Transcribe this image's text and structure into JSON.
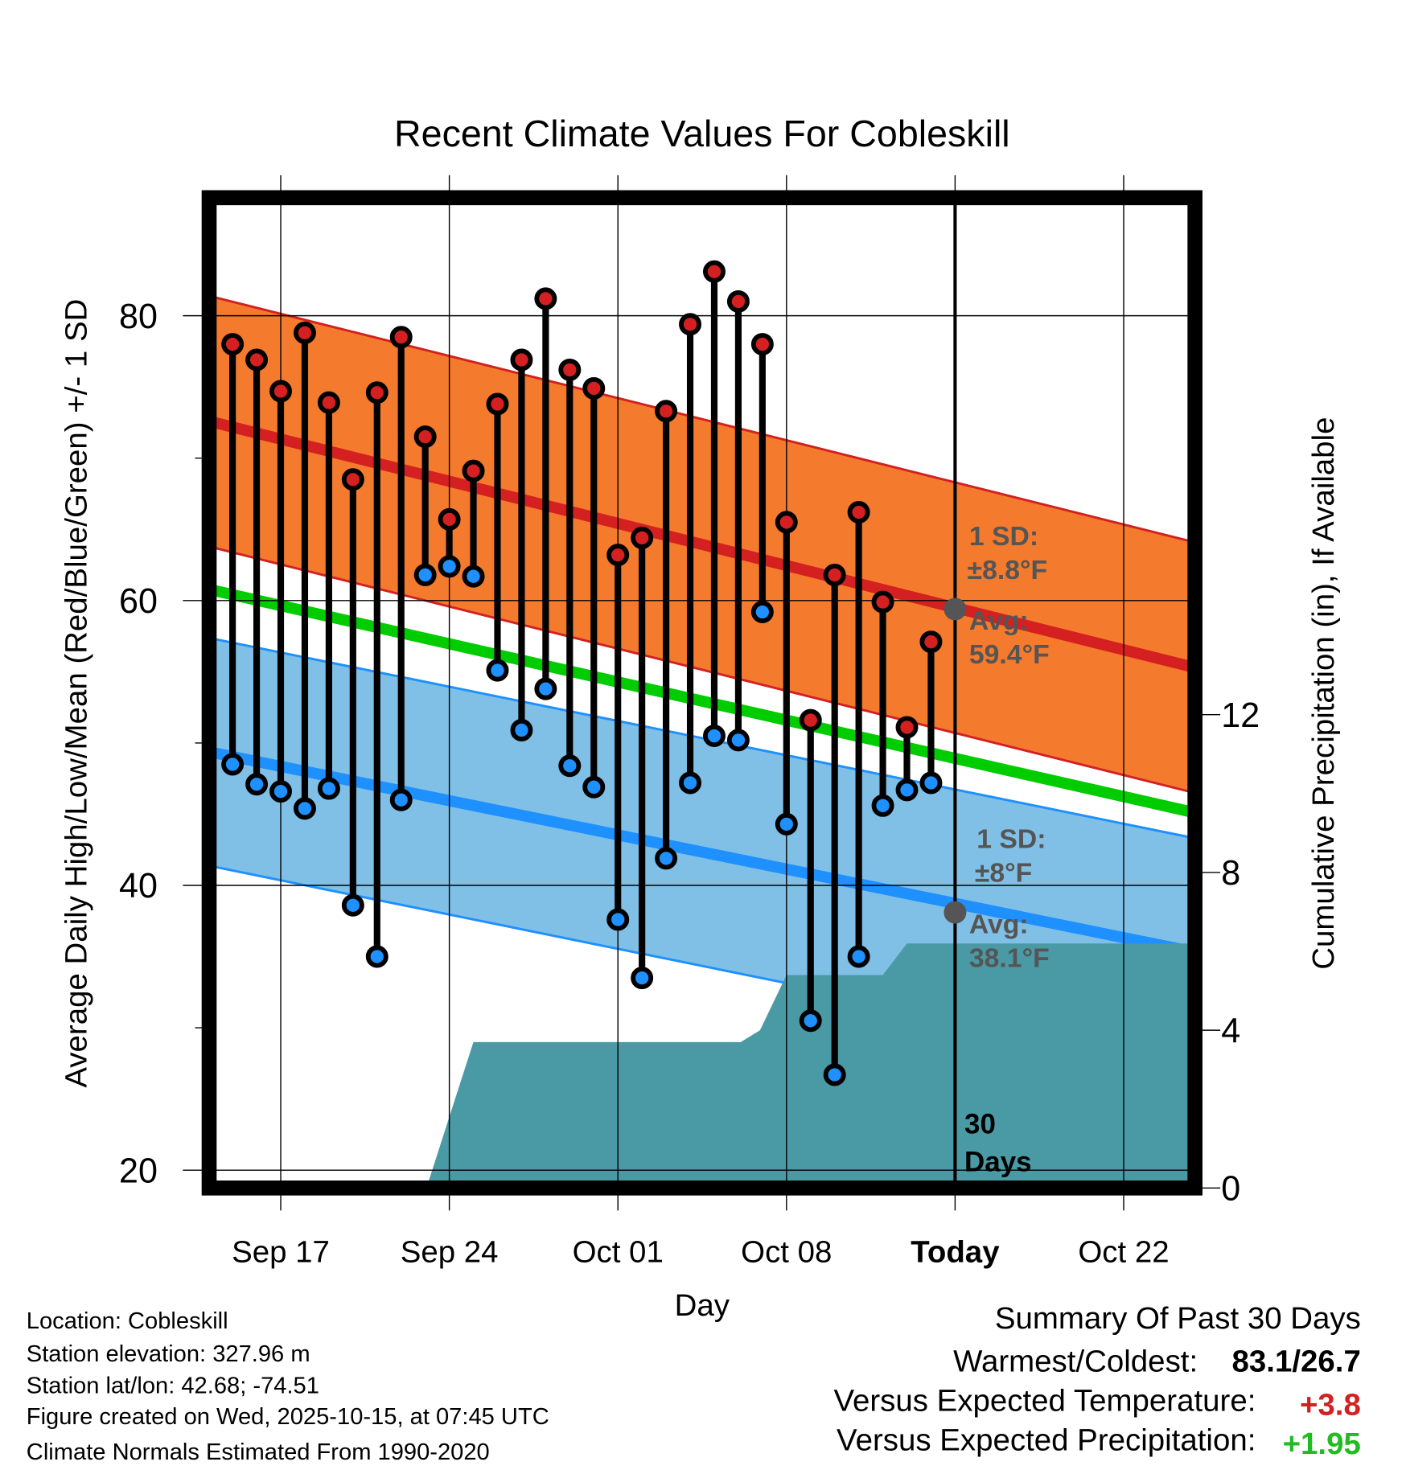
{
  "chart_data": {
    "type": "line",
    "title": "Recent Climate Values For Cobleskill",
    "xlabel": "Day",
    "ylabel": "Average Daily High/Low/Mean (Red/Blue/Green) +/- 1 SD",
    "y2label": "Cumulative Precipitation (in), If Available",
    "start_date": "Sep 15",
    "x_ticks": [
      {
        "day": 2,
        "label": "Sep 17"
      },
      {
        "day": 9,
        "label": "Sep 24"
      },
      {
        "day": 16,
        "label": "Oct 01"
      },
      {
        "day": 23,
        "label": "Oct 08"
      },
      {
        "day": 30,
        "label": "Today"
      },
      {
        "day": 37,
        "label": "Oct 22"
      }
    ],
    "xlim_days": [
      -0.75,
      39.7
    ],
    "ylim": [
      19.2,
      87.6
    ],
    "y_ticks": [
      20,
      40,
      60,
      80
    ],
    "y_minor_ticks": [
      30,
      50,
      70
    ],
    "y2lim": [
      0,
      24.8
    ],
    "y2_ticks": [
      0,
      4,
      8,
      12
    ],
    "highs": [
      78.0,
      76.9,
      74.7,
      78.8,
      73.9,
      68.5,
      74.6,
      78.5,
      71.5,
      65.7,
      69.1,
      73.8,
      76.9,
      81.2,
      76.2,
      74.9,
      63.2,
      64.4,
      73.3,
      79.4,
      83.1,
      81.0,
      78.0,
      65.5,
      51.6,
      61.8,
      66.2,
      59.9,
      51.1,
      57.1
    ],
    "lows": [
      48.5,
      47.1,
      46.6,
      45.4,
      46.8,
      38.6,
      35.0,
      46.0,
      61.8,
      62.4,
      61.7,
      55.1,
      50.9,
      53.8,
      48.4,
      46.9,
      37.6,
      33.5,
      41.9,
      47.2,
      50.5,
      50.2,
      59.2,
      44.3,
      30.5,
      26.7,
      35.0,
      45.6,
      46.7,
      47.2
    ],
    "normal_high": {
      "start": 72.5,
      "end": 55.4,
      "sd": 8.8
    },
    "normal_low": {
      "start": 49.3,
      "end": 35.4,
      "sd": 8.0
    },
    "normal_mean": {
      "start": 60.7,
      "end": 45.2
    },
    "precip_cumulative": [
      [
        -0.75,
        0
      ],
      [
        8.05,
        0
      ],
      [
        10,
        3.7
      ],
      [
        21.1,
        3.7
      ],
      [
        21.9,
        4.0
      ],
      [
        23,
        5.4
      ],
      [
        27,
        5.4
      ],
      [
        28,
        6.2
      ],
      [
        39.7,
        6.2
      ]
    ],
    "today_day": 30,
    "today_high_avg": 59.4,
    "today_low_avg": 38.1,
    "colors": {
      "high": "#d42020",
      "high_band": "#f47a2e",
      "low": "#1e90ff",
      "low_band": "#80c0e6",
      "mean": "#00cc00",
      "precip": "#4a9aa5"
    },
    "annotations": {
      "high_sd_label": "1 SD:",
      "high_sd_value": "±8.8°F",
      "high_avg_label": "Avg:",
      "high_avg_value": "59.4°F",
      "low_sd_label": "1 SD:",
      "low_sd_value": "±8°F",
      "low_avg_label": "Avg:",
      "low_avg_value": "38.1°F",
      "days_count": "30",
      "days_label": "Days"
    }
  },
  "footer": {
    "location": "Location: Cobleskill",
    "elevation": "Station elevation: 327.96 m",
    "latlon": "Station lat/lon: 42.68; -74.51",
    "created": "Figure created on Wed, 2025-10-15, at 07:45 UTC",
    "normals": "Climate Normals Estimated From 1990-2020"
  },
  "summary": {
    "title": "Summary Of Past 30 Days",
    "warmest_label": "Warmest/Coldest:",
    "warmest_value": "83.1/26.7",
    "temp_label": "Versus Expected Temperature:",
    "temp_value": "+3.8",
    "precip_label": "Versus Expected Precipitation:",
    "precip_value": "+1.95"
  }
}
